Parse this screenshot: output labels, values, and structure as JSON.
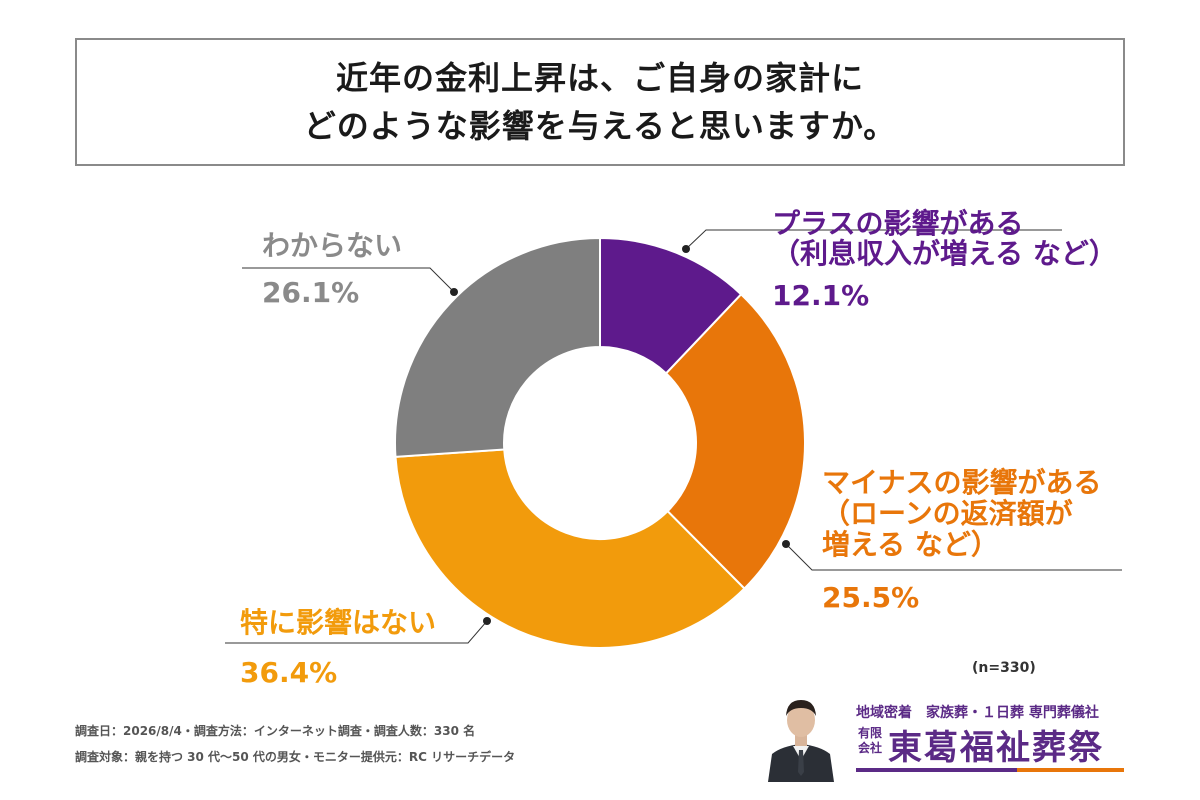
{
  "title": {
    "line1": "近年の金利上昇は、ご自身の家計に",
    "line2": "どのような影響を与えると思いますか。"
  },
  "chart_data": {
    "type": "pie",
    "donut": true,
    "title": "近年の金利上昇は、ご自身の家計にどのような影響を与えると思いますか。",
    "slices": [
      {
        "label_lines": [
          "プラスの影響がある",
          "（利息収入が増える など）"
        ],
        "value": 12.1,
        "pct_text": "12.1%",
        "color": "#5e1a8c",
        "label_color": "#5e1a8c"
      },
      {
        "label_lines": [
          "マイナスの影響がある",
          "（ローンの返済額が",
          "増える など）"
        ],
        "value": 25.5,
        "pct_text": "25.5%",
        "color": "#e8760a",
        "label_color": "#e8760a"
      },
      {
        "label_lines": [
          "特に影響はない"
        ],
        "value": 36.4,
        "pct_text": "36.4%",
        "color": "#f29b0c",
        "label_color": "#f29b0c"
      },
      {
        "label_lines": [
          "わからない"
        ],
        "value": 26.1,
        "pct_text": "26.1%",
        "color": "#7f7f7f",
        "label_color": "#8a8a8a"
      }
    ],
    "sample_size": "(n=330)"
  },
  "footnotes": {
    "line1": "調査日：2026/8/4・調査方法：インターネット調査・調査人数：330 名",
    "line2": "調査対象：親を持つ 30 代～50 代の男女・モニター提供元：RC リサーチデータ"
  },
  "logo": {
    "tagline": "地域密着　家族葬・１日葬 専門葬儀社",
    "badge_top": "有限",
    "badge_bottom": "会社",
    "company": "東葛福祉葬祭"
  }
}
